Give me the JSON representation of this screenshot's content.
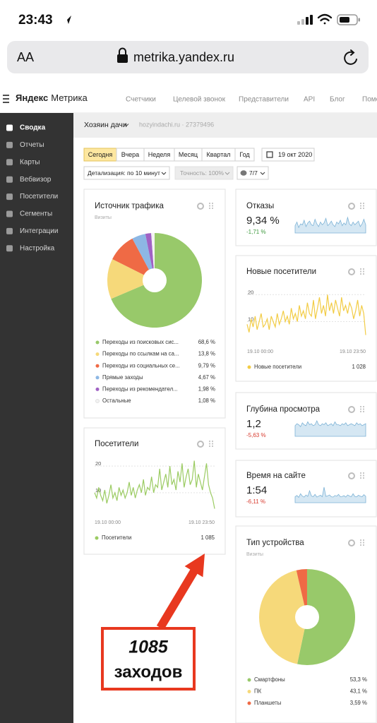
{
  "status_bar": {
    "time": "23:43"
  },
  "browser": {
    "text_size": "AA",
    "url": "metrika.yandex.ru"
  },
  "header": {
    "logo_brand": "Яндекс",
    "logo_product": "Метрика",
    "nav": [
      "Счетчики",
      "Целевой звонок",
      "Представители",
      "API",
      "Блог",
      "Помо"
    ]
  },
  "sidebar": {
    "items": [
      "Сводка",
      "Отчеты",
      "Карты",
      "Вебвизор",
      "Посетители",
      "Сегменты",
      "Интеграции",
      "Настройка"
    ]
  },
  "counter": {
    "name": "Хозяин дачи",
    "site": "hozyindachi.ru · 27379496"
  },
  "toolbar": {
    "periods": [
      "Сегодня",
      "Вчера",
      "Неделя",
      "Месяц",
      "Квартал",
      "Год"
    ],
    "date": "19 окт 2020",
    "detail": "Детализация: по 10 минут",
    "accuracy": "Точность: 100%",
    "filter": "7/7"
  },
  "widgets": {
    "traffic": {
      "title": "Источник трафика",
      "subtitle": "Визиты",
      "chart": {
        "type": "pie",
        "categories": [
          "Переходы из поисковых сис...",
          "Переходы по ссылкам на са...",
          "Переходы из социальных се...",
          "Прямые заходы",
          "Переходы из рекомендател...",
          "Остальные"
        ],
        "values": [
          68.6,
          13.8,
          9.79,
          4.67,
          1.98,
          1.08
        ],
        "value_labels": [
          "68,6 %",
          "13,8 %",
          "9,79 %",
          "4,67 %",
          "1,98 %",
          "1,08 %"
        ],
        "colors": [
          "#98c96a",
          "#f6d97a",
          "#ef6a45",
          "#8db7e4",
          "#a062c4",
          "#f2f2f2"
        ]
      }
    },
    "visitors": {
      "title": "Посетители",
      "chart": {
        "type": "line",
        "x_labels": [
          "19.10 00:00",
          "19.10 23:50"
        ],
        "ylim": [
          2,
          24
        ],
        "yticks": [
          10,
          20
        ],
        "series": [
          {
            "name": "Посетители",
            "color": "#9bcb62",
            "values": [
              10,
              8,
              12,
              9,
              7,
              11,
              6,
              9,
              13,
              8,
              10,
              7,
              12,
              9,
              11,
              8,
              10,
              14,
              9,
              12,
              8,
              11,
              13,
              10,
              15,
              9,
              12,
              11,
              16,
              10,
              13,
              12,
              19,
              11,
              14,
              17,
              12,
              20,
              13,
              15,
              11,
              18,
              14,
              21,
              12,
              16,
              19,
              13,
              15,
              22,
              12,
              17,
              14,
              11,
              16,
              21,
              13,
              10,
              8,
              4
            ]
          }
        ],
        "total": "1 085"
      }
    },
    "bounce": {
      "title": "Отказы",
      "value": "9,34 %",
      "change": "-1,71 %",
      "change_color": "#3f9a3f",
      "chart": {
        "type": "area",
        "color": "#7db3d6",
        "values": [
          8,
          12,
          6,
          10,
          9,
          14,
          7,
          11,
          13,
          9,
          8,
          15,
          10,
          7,
          12,
          9,
          11,
          16,
          8,
          10,
          13,
          9,
          7,
          12,
          10,
          14,
          8,
          11,
          9,
          17,
          10,
          8,
          12,
          9,
          11,
          13,
          7,
          10,
          15,
          9
        ]
      }
    },
    "new_visitors": {
      "title": "Новые посетители",
      "chart": {
        "type": "line",
        "x_labels": [
          "19.10 00:00",
          "19.10 23:50"
        ],
        "ylim": [
          2,
          24
        ],
        "yticks": [
          10,
          20
        ],
        "series": [
          {
            "name": "Новые посетители",
            "color": "#f2cc45",
            "values": [
              9,
              6,
              11,
              8,
              12,
              7,
              10,
              13,
              8,
              9,
              11,
              7,
              12,
              10,
              8,
              13,
              9,
              11,
              14,
              10,
              12,
              9,
              15,
              11,
              13,
              10,
              16,
              12,
              14,
              11,
              17,
              13,
              12,
              18,
              11,
              15,
              19,
              13,
              16,
              12,
              20,
              14,
              17,
              13,
              18,
              15,
              12,
              19,
              14,
              16,
              13,
              17,
              15,
              11,
              14,
              18,
              12,
              16,
              13,
              5
            ]
          }
        ],
        "total": "1 028"
      }
    },
    "depth": {
      "title": "Глубина просмотра",
      "value": "1,2",
      "change": "-5,63 %",
      "change_color": "#d83a2e",
      "chart": {
        "type": "area",
        "color": "#7db3d6",
        "values": [
          1.1,
          1.3,
          1.2,
          1.0,
          1.4,
          1.2,
          1.1,
          1.5,
          1.2,
          1.3,
          1.1,
          1.2,
          1.6,
          1.2,
          1.1,
          1.3,
          1.2,
          1.4,
          1.1,
          1.2,
          1.3,
          1.1,
          1.5,
          1.2,
          1.2,
          1.1,
          1.3,
          1.2,
          1.4,
          1.1,
          1.2,
          1.3,
          1.2,
          1.1,
          1.4,
          1.2,
          1.3,
          1.1,
          1.2,
          1.3
        ]
      }
    },
    "time_on_site": {
      "title": "Время на сайте",
      "value": "1:54",
      "change": "-6,11 %",
      "change_color": "#d83a2e",
      "chart": {
        "type": "area",
        "color": "#7db3d6",
        "values": [
          100,
          120,
          90,
          150,
          110,
          95,
          130,
          105,
          200,
          115,
          100,
          140,
          95,
          110,
          125,
          100,
          260,
          105,
          115,
          130,
          100,
          95,
          120,
          110,
          140,
          100,
          105,
          118,
          95,
          130,
          112,
          100,
          150,
          105,
          98,
          125,
          110,
          100,
          135,
          108
        ]
      }
    },
    "devices": {
      "title": "Тип устройства",
      "subtitle": "Визиты",
      "chart": {
        "type": "pie",
        "categories": [
          "Смартфоны",
          "ПК",
          "Планшеты"
        ],
        "values": [
          53.3,
          43.1,
          3.59
        ],
        "value_labels": [
          "53,3 %",
          "43,1 %",
          "3,59 %"
        ],
        "colors": [
          "#98c96a",
          "#f6d97a",
          "#ef6a45"
        ]
      }
    }
  },
  "annotation": {
    "lines": [
      "1085",
      "заходов"
    ]
  }
}
